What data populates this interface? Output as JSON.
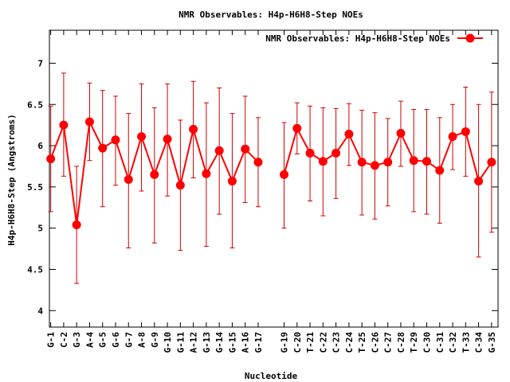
{
  "chart_data": {
    "type": "line",
    "title": "NMR Observables: H4p-H6H8-Step NOEs",
    "xlabel": "Nucleotide",
    "ylabel": "H4p-H6H8-Step (Angstroms)",
    "ylim": [
      3.8,
      7.4
    ],
    "yticks": [
      "4",
      "4.5",
      "5",
      "5.5",
      "6",
      "6.5",
      "7"
    ],
    "grid": false,
    "legend_position": "top-right",
    "series": [
      {
        "name": "NMR Observables: H4p-H6H8-Step NOEs",
        "color": "#ff0000",
        "categories": [
          "G-1",
          "C-2",
          "G-3",
          "A-4",
          "G-5",
          "G-6",
          "G-7",
          "A-8",
          "G-9",
          "G-10",
          "G-11",
          "A-12",
          "G-13",
          "G-14",
          "G-15",
          "A-16",
          "G-17",
          "G-19",
          "C-20",
          "T-21",
          "C-22",
          "C-23",
          "C-24",
          "T-25",
          "C-26",
          "C-27",
          "C-28",
          "T-29",
          "C-30",
          "C-31",
          "C-32",
          "T-33",
          "C-34",
          "G-35"
        ],
        "x": [
          1,
          2,
          3,
          4,
          5,
          6,
          7,
          8,
          9,
          10,
          11,
          12,
          13,
          14,
          15,
          16,
          17,
          19,
          20,
          21,
          22,
          23,
          24,
          25,
          26,
          27,
          28,
          29,
          30,
          31,
          32,
          33,
          34,
          35
        ],
        "values": [
          5.84,
          6.25,
          5.04,
          6.29,
          5.97,
          6.07,
          5.59,
          6.11,
          5.65,
          6.08,
          5.52,
          6.2,
          5.66,
          5.94,
          5.57,
          5.96,
          5.8,
          5.65,
          6.21,
          5.91,
          5.81,
          5.91,
          6.14,
          5.8,
          5.76,
          5.8,
          6.15,
          5.82,
          5.81,
          5.7,
          6.11,
          6.17,
          5.57,
          5.8
        ],
        "err_low": [
          5.2,
          5.63,
          4.33,
          5.82,
          5.26,
          5.52,
          4.76,
          5.45,
          4.82,
          5.39,
          4.73,
          5.61,
          4.78,
          5.17,
          4.76,
          5.31,
          5.26,
          5.0,
          5.9,
          5.33,
          5.15,
          5.36,
          5.76,
          5.16,
          5.11,
          5.27,
          5.75,
          5.2,
          5.17,
          5.06,
          5.71,
          5.63,
          4.65,
          4.95
        ],
        "err_high": [
          6.48,
          6.88,
          5.75,
          6.76,
          6.67,
          6.6,
          6.39,
          6.75,
          6.46,
          6.75,
          6.31,
          6.78,
          6.52,
          6.7,
          6.39,
          6.6,
          6.34,
          6.28,
          6.52,
          6.48,
          6.46,
          6.45,
          6.51,
          6.43,
          6.4,
          6.33,
          6.54,
          6.44,
          6.44,
          6.34,
          6.5,
          6.71,
          6.5,
          6.65
        ]
      }
    ]
  }
}
